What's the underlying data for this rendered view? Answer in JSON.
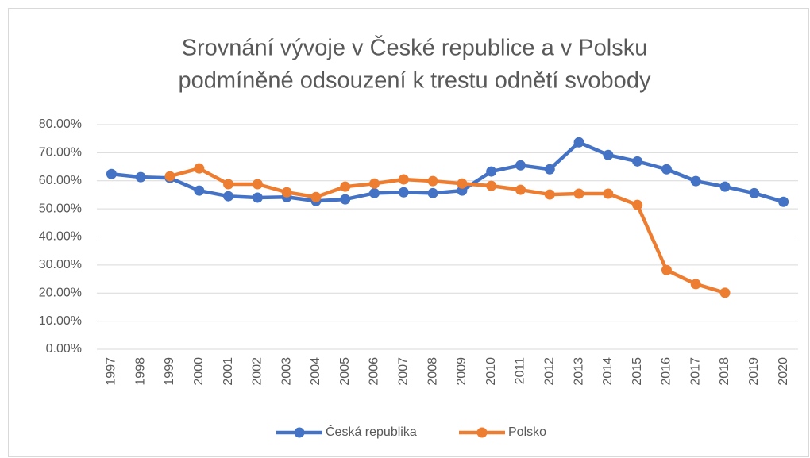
{
  "chart_data": {
    "type": "line",
    "title": [
      "Srovnání vývoje v České republice a v Polsku",
      "podmíněné odsouzení k trestu odnětí svobody"
    ],
    "categories": [
      "1997",
      "1998",
      "1999",
      "2000",
      "2001",
      "2002",
      "2003",
      "2004",
      "2005",
      "2006",
      "2007",
      "2008",
      "2009",
      "2010",
      "2011",
      "2012",
      "2013",
      "2014",
      "2015",
      "2016",
      "2017",
      "2018",
      "2019",
      "2020"
    ],
    "series": [
      {
        "name": "Česká republika",
        "color": "#4472c4",
        "values": [
          62.4,
          61.3,
          61.0,
          56.5,
          54.5,
          54.0,
          54.2,
          52.8,
          53.4,
          55.6,
          55.9,
          55.6,
          56.5,
          63.3,
          65.5,
          64.1,
          73.7,
          69.2,
          66.9,
          64.1,
          59.9,
          57.9,
          55.6,
          52.5
        ]
      },
      {
        "name": "Polsko",
        "color": "#ed7d31",
        "values": [
          null,
          null,
          61.6,
          64.4,
          58.8,
          58.8,
          55.9,
          54.2,
          57.9,
          59.0,
          60.5,
          59.9,
          59.0,
          58.2,
          56.8,
          55.1,
          55.4,
          55.4,
          51.4,
          28.2,
          23.2,
          20.1,
          null,
          null
        ]
      }
    ],
    "ylim": [
      0,
      80
    ],
    "yticks": [
      {
        "value": 0,
        "label": "0.00%"
      },
      {
        "value": 10,
        "label": "10.00%"
      },
      {
        "value": 20,
        "label": "20.00%"
      },
      {
        "value": 30,
        "label": "30.00%"
      },
      {
        "value": 40,
        "label": "40.00%"
      },
      {
        "value": 50,
        "label": "50.00%"
      },
      {
        "value": 60,
        "label": "60.00%"
      },
      {
        "value": 70,
        "label": "70.00%"
      },
      {
        "value": 80,
        "label": "80.00%"
      }
    ],
    "grid": true,
    "legend": "bottom"
  }
}
